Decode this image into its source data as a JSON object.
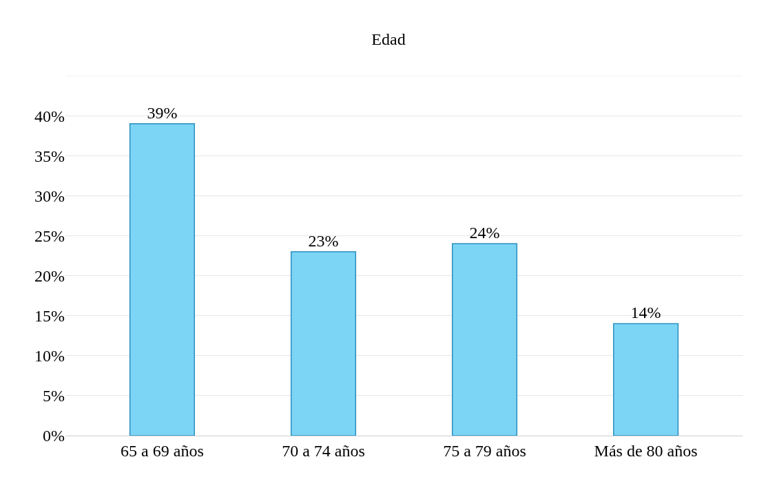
{
  "chart_data": {
    "type": "bar",
    "title": "Edad",
    "categories": [
      "65 a 69 años",
      "70 a 74 años",
      "75 a 79 años",
      "Más de 80 años"
    ],
    "values": [
      39,
      23,
      24,
      14
    ],
    "value_labels": [
      "39%",
      "23%",
      "24%",
      "14%"
    ],
    "color": "#7dd5f6",
    "ylim": [
      0,
      45
    ],
    "yticks": [
      {
        "value": 0,
        "label": "0%"
      },
      {
        "value": 5,
        "label": "5%"
      },
      {
        "value": 10,
        "label": "10%"
      },
      {
        "value": 15,
        "label": "15%"
      },
      {
        "value": 20,
        "label": "20%"
      },
      {
        "value": 25,
        "label": "25%"
      },
      {
        "value": 30,
        "label": "30%"
      },
      {
        "value": 35,
        "label": "35%"
      },
      {
        "value": 40,
        "label": "40%"
      },
      {
        "value": 45,
        "label": null
      }
    ],
    "grid": "y",
    "legend": false
  }
}
